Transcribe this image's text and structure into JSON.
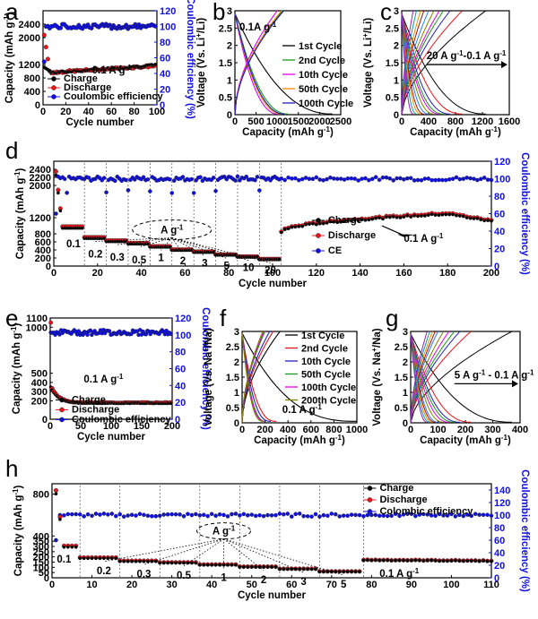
{
  "figure": {
    "panels": [
      "a",
      "b",
      "c",
      "d",
      "e",
      "f",
      "g",
      "h"
    ]
  },
  "colors": {
    "charge": "#000000",
    "discharge": "#e8141b",
    "ce": "#1010e0",
    "axis_right": "#1010e0"
  },
  "chart_data": [
    {
      "id": "a",
      "label": "a",
      "type": "scatter",
      "xlabel": "Cycle number",
      "ylabel": "Capacity (mAh g-1)",
      "y2label": "Coulombic efficiency (%)",
      "xlim": [
        0,
        100
      ],
      "xticks": [
        0,
        20,
        40,
        60,
        80,
        100
      ],
      "ylim": [
        0,
        2800
      ],
      "yticks": [
        0,
        400,
        800,
        1200,
        2000,
        2400
      ],
      "yticklabels": [
        "0",
        "400",
        "800",
        "1200",
        "2000",
        "2400"
      ],
      "y2lim": [
        0,
        120
      ],
      "y2ticks": [
        0,
        20,
        40,
        60,
        80,
        100,
        120
      ],
      "annotation": "0.1 A g-1",
      "legend": [
        "Charge",
        "Discharge",
        "Coulombic efficiency"
      ],
      "series": [
        {
          "name": "Charge",
          "color": "#000000",
          "y_start": 1140,
          "y_end": 1180,
          "dip": 950
        },
        {
          "name": "Discharge",
          "color": "#e8141b",
          "y_start": 2300,
          "y_end": 1160,
          "dip": 960
        },
        {
          "name": "Coulombic efficiency",
          "axis": "right",
          "color": "#1010e0",
          "y_start": 55,
          "y_level": 100
        }
      ]
    },
    {
      "id": "b",
      "label": "b",
      "type": "line",
      "xlabel": "Capacity (mAh g-1)",
      "ylabel": "Voltage (Vs. Li+/Li)",
      "xlim": [
        0,
        2500
      ],
      "xticks": [
        0,
        500,
        1000,
        1500,
        2000,
        2500
      ],
      "ylim": [
        0,
        3.0
      ],
      "yticks": [
        0,
        0.5,
        1.0,
        1.5,
        2.0,
        2.5,
        3.0
      ],
      "annotation": "0.1A g-1",
      "series": [
        {
          "name": "1st Cycle",
          "color": "#000000",
          "charge_cap": 1150,
          "discharge_cap": 2300
        },
        {
          "name": "2nd Cycle",
          "color": "#1a9a1a",
          "charge_cap": 1120,
          "discharge_cap": 1250
        },
        {
          "name": "10th Cycle",
          "color": "#e000e0",
          "charge_cap": 1000,
          "discharge_cap": 1020
        },
        {
          "name": "50th Cycle",
          "color": "#f08c00",
          "charge_cap": 1100,
          "discharge_cap": 1120
        },
        {
          "name": "100th Cycle",
          "color": "#2020c0",
          "charge_cap": 1150,
          "discharge_cap": 1170
        }
      ]
    },
    {
      "id": "c",
      "label": "c",
      "type": "line",
      "xlabel": "Capacity (mAh g-1)",
      "ylabel": "Voltage (Vs. Li+/Li)",
      "xlim": [
        0,
        1600
      ],
      "xticks": [
        0,
        400,
        800,
        1200,
        1600
      ],
      "ylim": [
        0,
        3.0
      ],
      "yticks": [
        0,
        0.5,
        1.0,
        1.5,
        2.0,
        2.5,
        3.0
      ],
      "annotation": "20 A g-1-0.1 A g-1",
      "capacities": [
        1250,
        900,
        720,
        620,
        560,
        480,
        400,
        330,
        280,
        220,
        170
      ]
    },
    {
      "id": "d",
      "label": "d",
      "type": "scatter",
      "xlabel": "Cycle number",
      "ylabel": "Capacity (mAh g-1)",
      "y2label": "Coulombic efficiency (%)",
      "xlim": [
        0,
        200
      ],
      "xticks": [
        0,
        20,
        40,
        60,
        80,
        100,
        120,
        140,
        160,
        180,
        200
      ],
      "ylim": [
        0,
        2600
      ],
      "yticks": [
        0,
        200,
        400,
        600,
        800,
        1200,
        2000,
        2200,
        2400
      ],
      "yticklabels": [
        "0",
        "200",
        "400",
        "600",
        "800",
        "1200",
        "2000",
        "2200",
        "2400"
      ],
      "y2lim": [
        0,
        120
      ],
      "y2ticks": [
        0,
        20,
        40,
        60,
        80,
        100,
        120
      ],
      "rate_labels": [
        "0.1",
        "0.2",
        "0.3",
        "0.5",
        "1",
        "2",
        "3",
        "5",
        "10",
        "20"
      ],
      "rate_caps": [
        960,
        700,
        620,
        560,
        480,
        400,
        350,
        280,
        230,
        170
      ],
      "current_label": "A g-1",
      "annotation": "0.1 A g-1",
      "legend": [
        "Charge",
        "Discharge",
        "CE"
      ],
      "recovery": {
        "x_start": 104,
        "y_start": 850,
        "y_peak": 1300,
        "x_peak": 180,
        "y_end": 1120
      }
    },
    {
      "id": "e",
      "label": "e",
      "type": "scatter",
      "xlabel": "Cycle number",
      "ylabel": "Capacity (mAh g-1)",
      "y2label": "Coulombic efficiency (%)",
      "xlim": [
        0,
        200
      ],
      "xticks": [
        0,
        50,
        100,
        150,
        200
      ],
      "ylim": [
        0,
        1100
      ],
      "yticks": [
        0,
        200,
        300,
        400,
        500,
        1000,
        1100
      ],
      "yticklabels": [
        "0",
        "200",
        "300",
        "400",
        "500",
        "1000",
        "1100"
      ],
      "y2lim": [
        0,
        120
      ],
      "y2ticks": [
        0,
        20,
        40,
        60,
        80,
        100,
        120
      ],
      "annotation": "0.1 A g-1",
      "legend": [
        "Charge",
        "Discharge",
        "Coulombic efficiency"
      ],
      "series": [
        {
          "name": "Charge",
          "color": "#000000",
          "y_start": 1000,
          "y_end": 175
        },
        {
          "name": "Discharge",
          "color": "#e8141b",
          "y_start": 1050,
          "y_end": 180
        },
        {
          "name": "Coulombic efficiency",
          "axis": "right",
          "color": "#1010e0",
          "y_level": 103
        }
      ]
    },
    {
      "id": "f",
      "label": "f",
      "type": "line",
      "xlabel": "Capacity (mAh g-1)",
      "ylabel": "Voltage (Vs. Na+/Na)",
      "xlim": [
        0,
        1000
      ],
      "xticks": [
        0,
        200,
        400,
        600,
        800,
        1000
      ],
      "ylim": [
        0,
        3.0
      ],
      "yticks": [
        0,
        0.5,
        1.0,
        1.5,
        2.0,
        2.5,
        3.0
      ],
      "annotation": "0.1 A g-1",
      "series": [
        {
          "name": "1st  Cycle",
          "color": "#000000",
          "charge_cap": 330,
          "discharge_cap": 1000
        },
        {
          "name": "2nd  Cycle",
          "color": "#e8141b",
          "charge_cap": 270,
          "discharge_cap": 300
        },
        {
          "name": "10th  Cycle",
          "color": "#2020c0",
          "charge_cap": 240,
          "discharge_cap": 250
        },
        {
          "name": "50th  Cycle",
          "color": "#1a9a1a",
          "charge_cap": 200,
          "discharge_cap": 210
        },
        {
          "name": "100th  Cycle",
          "color": "#e000e0",
          "charge_cap": 190,
          "discharge_cap": 200
        },
        {
          "name": "200th  Cycle",
          "color": "#808000",
          "charge_cap": 180,
          "discharge_cap": 185
        }
      ]
    },
    {
      "id": "g",
      "label": "g",
      "type": "line",
      "xlabel": "Capacity (mAh g-1)",
      "ylabel": "Voltage (Vs. Na+/Na)",
      "xlim": [
        0,
        400
      ],
      "xticks": [
        0,
        100,
        200,
        300,
        400
      ],
      "ylim": [
        0,
        3.0
      ],
      "yticks": [
        0,
        0.5,
        1.0,
        1.5,
        2.0,
        2.5,
        3.0
      ],
      "annotation": "5 A g-1 - 0.1 A g-1",
      "capacities": [
        370,
        220,
        180,
        160,
        140,
        120,
        100,
        90,
        80,
        70,
        60
      ]
    },
    {
      "id": "h",
      "label": "h",
      "type": "scatter",
      "xlabel": "Cycle number",
      "ylabel": "Capacity (mAh g-1)",
      "y2label": "Coulombic efficiency (%)",
      "xlim": [
        0,
        110
      ],
      "xticks": [
        0,
        10,
        20,
        30,
        40,
        50,
        60,
        70,
        80,
        90,
        100,
        110
      ],
      "ylim": [
        0,
        900
      ],
      "yticks": [
        0,
        50,
        100,
        150,
        200,
        250,
        300,
        350,
        400,
        800
      ],
      "yticklabels": [
        "0",
        "50",
        "100",
        "150",
        "200",
        "250",
        "300",
        "350",
        "400",
        "800"
      ],
      "y2lim": [
        0,
        150
      ],
      "y2ticks": [
        0,
        20,
        40,
        60,
        80,
        100,
        120,
        140
      ],
      "rate_labels": [
        "0.1",
        "0.2",
        "0.3",
        "0.5",
        "1",
        "2",
        "3",
        "5"
      ],
      "rate_caps": [
        300,
        190,
        160,
        145,
        125,
        105,
        85,
        60
      ],
      "current_label": "A g-1",
      "annotation": "0.1 A g-1",
      "legend": [
        "Charge",
        "Discharge",
        "Colombic efficiency"
      ],
      "recovery": {
        "x_start": 78,
        "y_start": 170,
        "y_end": 162
      }
    }
  ]
}
